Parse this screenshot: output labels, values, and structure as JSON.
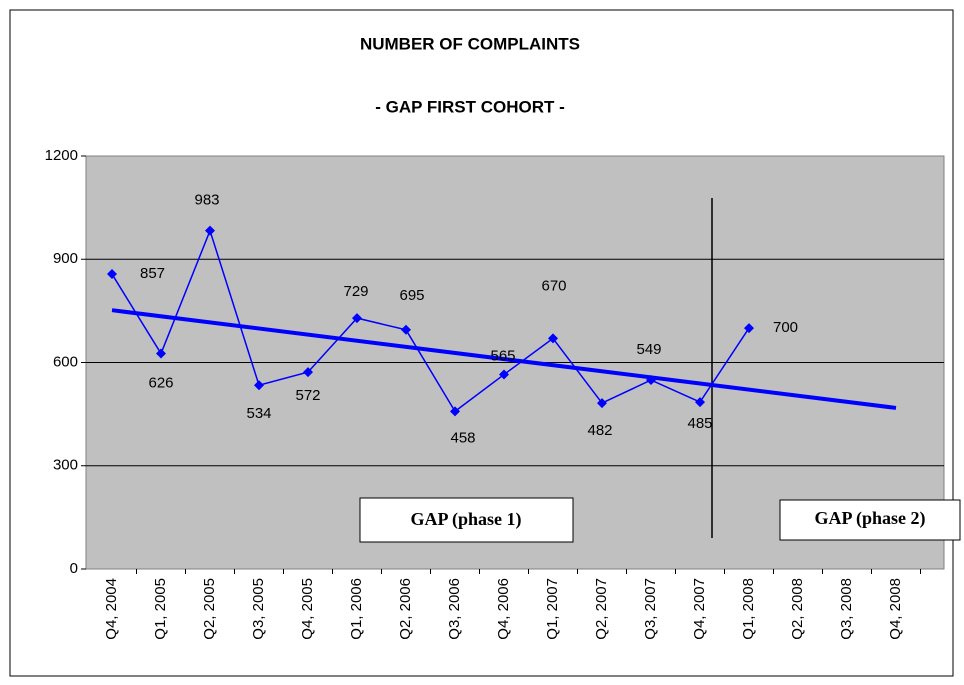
{
  "chart_data": {
    "type": "line",
    "title": "NUMBER OF COMPLAINTS",
    "subtitle": "- GAP  FIRST  COHORT -",
    "categories": [
      "Q4, 2004",
      "Q1, 2005",
      "Q2, 2005",
      "Q3, 2005",
      "Q4, 2005",
      "Q1, 2006",
      "Q2, 2006",
      "Q3, 2006",
      "Q4, 2006",
      "Q1, 2007",
      "Q2, 2007",
      "Q3, 2007",
      "Q4, 2007",
      "Q1, 2008",
      "Q2, 2008",
      "Q3, 2008",
      "Q4, 2008"
    ],
    "series": [
      {
        "color": "#0000ff",
        "values": [
          857,
          626,
          983,
          534,
          572,
          729,
          695,
          458,
          565,
          670,
          482,
          549,
          485,
          700,
          null,
          null,
          null
        ]
      }
    ],
    "trendline": {
      "color": "#0000ff",
      "values": [
        752,
        468
      ]
    },
    "ylim": [
      0,
      1200
    ],
    "yticks": [
      0,
      300,
      600,
      900,
      1200
    ],
    "grid": true,
    "annotations": [
      "GAP (phase 1)",
      "GAP (phase 2)"
    ]
  }
}
